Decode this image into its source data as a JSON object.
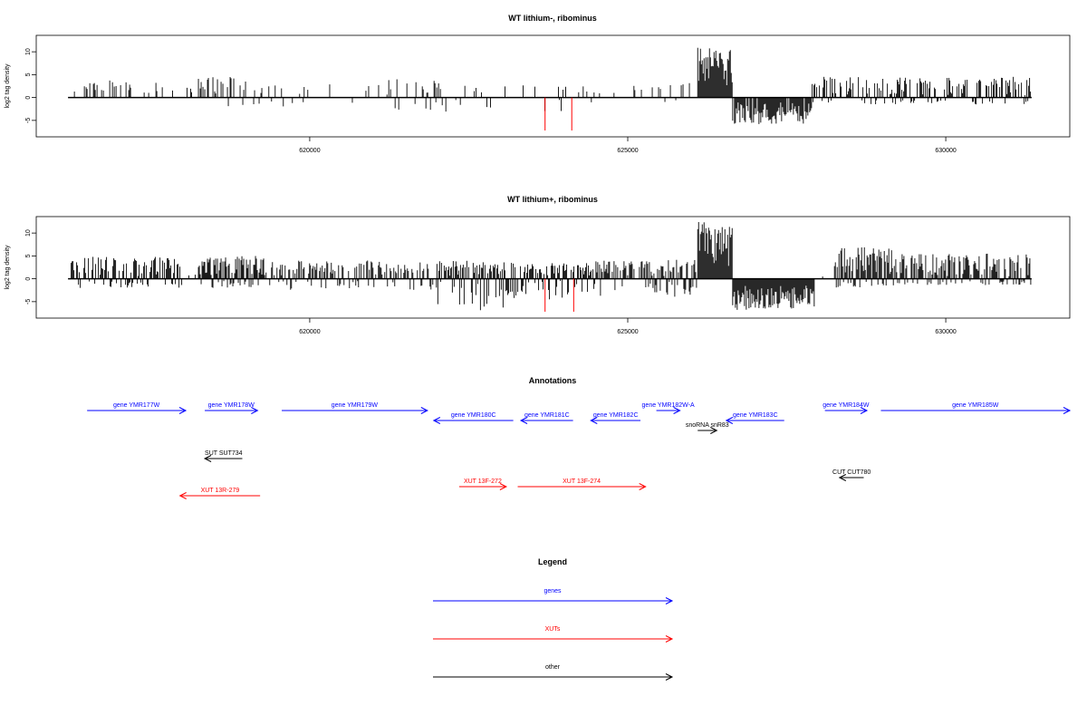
{
  "chart_data": [
    {
      "type": "bar",
      "title": "WT lithium-, ribominus",
      "xlabel": "",
      "ylabel": "log2 tag density",
      "xlim": [
        615700,
        631950
      ],
      "ylim": [
        -8,
        13
      ],
      "yticks": [
        -5,
        0,
        5,
        10
      ],
      "xticks": [
        620000,
        625000,
        630000
      ],
      "xtick_labels": [
        "620000",
        "625000",
        "630000"
      ],
      "x_start": 616200,
      "x_end": 631350,
      "segments": [
        {
          "from": 616300,
          "to": 617800,
          "density": 0.35,
          "pos_max": 3.8,
          "neg_max": 0
        },
        {
          "from": 617800,
          "to": 618250,
          "density": 0.05,
          "pos_max": 2.5,
          "neg_max": 0
        },
        {
          "from": 618250,
          "to": 619300,
          "density": 0.4,
          "pos_max": 4.5,
          "neg_max": -4.0
        },
        {
          "from": 619300,
          "to": 620200,
          "density": 0.1,
          "pos_max": 3.0,
          "neg_max": -2.5
        },
        {
          "from": 620200,
          "to": 621200,
          "density": 0.12,
          "pos_max": 3.0,
          "neg_max": -1.5
        },
        {
          "from": 621200,
          "to": 622500,
          "density": 0.18,
          "pos_max": 4.0,
          "neg_max": -3.5
        },
        {
          "from": 622500,
          "to": 624200,
          "density": 0.12,
          "pos_max": 3.0,
          "neg_max": -3.0
        },
        {
          "from": 624200,
          "to": 625200,
          "density": 0.15,
          "pos_max": 3.0,
          "neg_max": -3.0
        },
        {
          "from": 625200,
          "to": 626100,
          "density": 0.18,
          "pos_max": 3.5,
          "neg_max": -1.0
        },
        {
          "from": 626100,
          "to": 626650,
          "density": 1.0,
          "pos_max": 11.3,
          "neg_max": 0,
          "pos_min": 2.0
        },
        {
          "from": 626650,
          "to": 627900,
          "density": 0.9,
          "pos_max": 0,
          "neg_max": -5.8,
          "neg_min": -1.0
        },
        {
          "from": 627900,
          "to": 631350,
          "density": 0.55,
          "pos_max": 4.6,
          "neg_max": -1.5
        }
      ],
      "red_bars": [
        {
          "x": 623700,
          "y": -7.2
        },
        {
          "x": 624120,
          "y": -7.2
        }
      ]
    },
    {
      "type": "bar",
      "title": "WT lithium+, ribominus",
      "xlabel": "",
      "ylabel": "log2 tag density",
      "xlim": [
        615700,
        631950
      ],
      "ylim": [
        -8,
        13
      ],
      "yticks": [
        -5,
        0,
        5,
        10
      ],
      "xticks": [
        620000,
        625000,
        630000
      ],
      "xtick_labels": [
        "620000",
        "625000",
        "630000"
      ],
      "x_start": 616200,
      "x_end": 631350,
      "segments": [
        {
          "from": 616250,
          "to": 618000,
          "density": 0.8,
          "pos_max": 4.8,
          "neg_max": -2.0
        },
        {
          "from": 618000,
          "to": 618250,
          "density": 0.05,
          "pos_max": 1.0,
          "neg_max": 0
        },
        {
          "from": 618250,
          "to": 619300,
          "density": 1.0,
          "pos_max": 5.0,
          "neg_max": -2.0
        },
        {
          "from": 619300,
          "to": 622000,
          "density": 0.6,
          "pos_max": 4.0,
          "neg_max": -2.5
        },
        {
          "from": 622000,
          "to": 623100,
          "density": 0.9,
          "pos_max": 4.0,
          "neg_max": -7.0
        },
        {
          "from": 623100,
          "to": 624500,
          "density": 0.8,
          "pos_max": 3.5,
          "neg_max": -4.5
        },
        {
          "from": 624500,
          "to": 626100,
          "density": 0.7,
          "pos_max": 4.2,
          "neg_max": -4.0
        },
        {
          "from": 626100,
          "to": 626650,
          "density": 1.0,
          "pos_max": 12.5,
          "neg_max": 0,
          "pos_min": 2.0
        },
        {
          "from": 626650,
          "to": 627950,
          "density": 1.0,
          "pos_max": 0,
          "neg_max": -6.8,
          "neg_min": -1.5
        },
        {
          "from": 627950,
          "to": 628250,
          "density": 0.1,
          "pos_max": 0.5,
          "neg_max": 0
        },
        {
          "from": 628250,
          "to": 629200,
          "density": 1.0,
          "pos_max": 7.0,
          "neg_max": -2.0,
          "pos_min": 1.0
        },
        {
          "from": 629200,
          "to": 631350,
          "density": 0.85,
          "pos_max": 5.5,
          "neg_max": -1.5
        }
      ],
      "red_bars": [
        {
          "x": 623700,
          "y": -7.2
        },
        {
          "x": 624150,
          "y": -7.2
        }
      ]
    }
  ],
  "annotations": {
    "title": "Annotations",
    "features": [
      {
        "label": "gene YMR177W",
        "type": "gene",
        "start": 616500,
        "end": 618050,
        "strand": "+",
        "row": 0
      },
      {
        "label": "gene YMR178W",
        "type": "gene",
        "start": 618350,
        "end": 619180,
        "strand": "+",
        "row": 0
      },
      {
        "label": "gene YMR179W",
        "type": "gene",
        "start": 619560,
        "end": 621850,
        "strand": "+",
        "row": 0
      },
      {
        "label": "gene YMR180C",
        "type": "gene",
        "start": 621950,
        "end": 623200,
        "strand": "-",
        "row": 1
      },
      {
        "label": "gene YMR181C",
        "type": "gene",
        "start": 623320,
        "end": 624140,
        "strand": "-",
        "row": 1
      },
      {
        "label": "gene YMR182C",
        "type": "gene",
        "start": 624420,
        "end": 625200,
        "strand": "-",
        "row": 1
      },
      {
        "label": "gene YMR182W-A",
        "type": "gene",
        "start": 625450,
        "end": 625820,
        "strand": "+",
        "row": 0
      },
      {
        "label": "snoRNA snR83",
        "type": "other",
        "start": 626100,
        "end": 626400,
        "strand": "+",
        "row": 2
      },
      {
        "label": "gene YMR183C",
        "type": "gene",
        "start": 626550,
        "end": 627460,
        "strand": "-",
        "row": 1
      },
      {
        "label": "gene YMR184W",
        "type": "gene",
        "start": 628100,
        "end": 628760,
        "strand": "+",
        "row": 0
      },
      {
        "label": "gene YMR185W",
        "type": "gene",
        "start": 628980,
        "end": 631950,
        "strand": "+",
        "row": 0
      },
      {
        "label": "SUT SUT734",
        "type": "other",
        "start": 618350,
        "end": 618940,
        "strand": "-",
        "row": 3
      },
      {
        "label": "CUT CUT780",
        "type": "other",
        "start": 628330,
        "end": 628710,
        "strand": "-",
        "row": 4
      },
      {
        "label": "XUT 13F-272",
        "type": "xut",
        "start": 622350,
        "end": 623090,
        "strand": "+",
        "row": 5
      },
      {
        "label": "XUT 13F-274",
        "type": "xut",
        "start": 623270,
        "end": 625280,
        "strand": "+",
        "row": 5
      },
      {
        "label": "XUT 13R-279",
        "type": "xut",
        "start": 617960,
        "end": 619220,
        "strand": "-",
        "row": 6
      }
    ]
  },
  "legend": {
    "title": "Legend",
    "items": [
      {
        "label": "genes",
        "type": "gene"
      },
      {
        "label": "XUTs",
        "type": "xut"
      },
      {
        "label": "other",
        "type": "other"
      }
    ]
  },
  "colors": {
    "gene": "#0000ff",
    "xut": "#ff0000",
    "other": "#000000",
    "highlight": "#ff0000"
  }
}
